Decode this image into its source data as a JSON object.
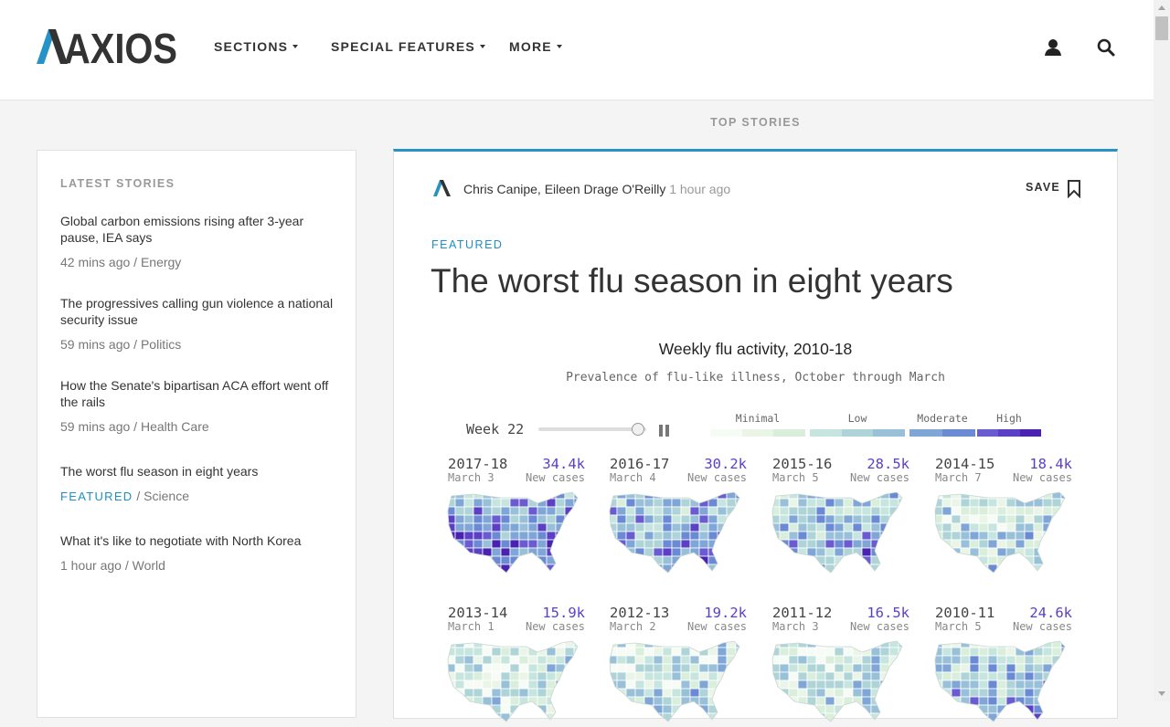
{
  "header": {
    "logo_text": "AXIOS",
    "nav": [
      {
        "label": "SECTIONS"
      },
      {
        "label": "SPECIAL FEATURES"
      },
      {
        "label": "MORE"
      }
    ],
    "icons": [
      "user-icon",
      "search-icon"
    ]
  },
  "top_stories_label": "TOP STORIES",
  "sidebar": {
    "heading": "LATEST STORIES",
    "stories": [
      {
        "title": "Global carbon emissions rising after 3-year pause, IEA says",
        "time": "42 mins ago",
        "section": "Energy",
        "featured": ""
      },
      {
        "title": "The progressives calling gun violence a national security issue",
        "time": "59 mins ago",
        "section": "Politics",
        "featured": ""
      },
      {
        "title": "How the Senate's bipartisan ACA effort went off the rails",
        "time": "59 mins ago",
        "section": "Health Care",
        "featured": ""
      },
      {
        "title": "The worst flu season in eight years",
        "time": "",
        "section": "Science",
        "featured": "FEATURED"
      },
      {
        "title": "What it's like to negotiate with North Korea",
        "time": "1 hour ago",
        "section": "World",
        "featured": ""
      }
    ]
  },
  "article": {
    "authors": "Chris Canipe, Eileen Drage O'Reilly",
    "time": "1 hour ago",
    "save_label": "SAVE",
    "tag": "FEATURED",
    "headline": "The worst flu season in eight years"
  },
  "viz": {
    "title": "Weekly flu activity, 2010-18",
    "subtitle": "Prevalence of flu-like illness, October through March",
    "week_label": "Week 22",
    "slider_fraction": 0.92,
    "legend": [
      {
        "label": "Minimal",
        "colors": [
          "#f7fbf5",
          "#eaf5e8",
          "#d9eedb"
        ]
      },
      {
        "label": "Low",
        "colors": [
          "#c6e5df",
          "#aed4d8",
          "#98c0d8"
        ]
      },
      {
        "label": "Moderate",
        "colors": [
          "#7fa6d6",
          "#6a8ad4"
        ]
      },
      {
        "label": "High",
        "colors": [
          "#6a5bd0",
          "#5b3fc4",
          "#4a22b2"
        ]
      }
    ],
    "new_cases_label": "New cases",
    "seasons": [
      {
        "name": "2017-18",
        "count": "34.4k",
        "date": "March 3",
        "intensity": 0.9
      },
      {
        "name": "2016-17",
        "count": "30.2k",
        "date": "March 4",
        "intensity": 0.75
      },
      {
        "name": "2015-16",
        "count": "28.5k",
        "date": "March 5",
        "intensity": 0.68
      },
      {
        "name": "2014-15",
        "count": "18.4k",
        "date": "March 7",
        "intensity": 0.45
      },
      {
        "name": "2013-14",
        "count": "15.9k",
        "date": "March 1",
        "intensity": 0.35
      },
      {
        "name": "2012-13",
        "count": "19.2k",
        "date": "March 2",
        "intensity": 0.4
      },
      {
        "name": "2011-12",
        "count": "16.5k",
        "date": "March 3",
        "intensity": 0.4
      },
      {
        "name": "2010-11",
        "count": "24.6k",
        "date": "March 5",
        "intensity": 0.62
      }
    ]
  }
}
